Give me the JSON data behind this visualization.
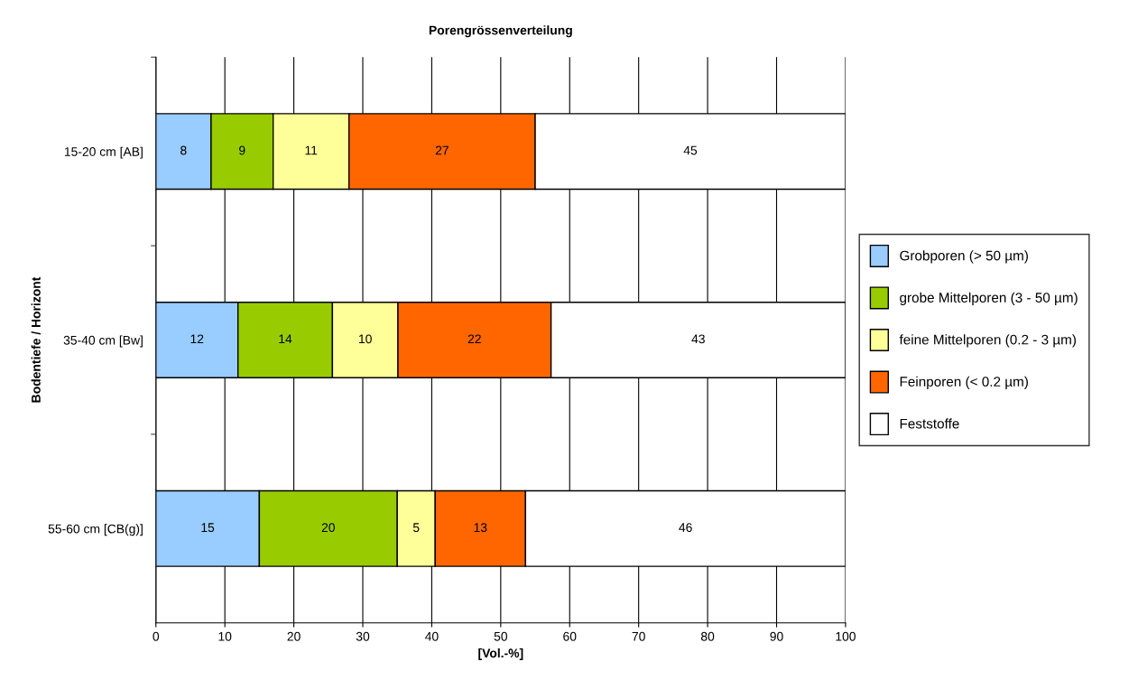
{
  "chart_data": {
    "type": "bar",
    "orientation": "horizontal",
    "stacked": true,
    "title": "Porengrössenverteilung",
    "xlabel": "[Vol.-%]",
    "ylabel": "Bodentiefe / Horizont",
    "categories": [
      "15-20 cm [AB]",
      "35-40 cm [Bw]",
      "55-60 cm [CB(g)]"
    ],
    "series": [
      {
        "name": "Grobporen (> 50 µm)",
        "color": "#99ccff",
        "values": [
          8,
          11.9,
          15
        ],
        "value_labels": [
          "8",
          "12",
          "15"
        ]
      },
      {
        "name": "grobe Mittelporen (3 - 50 µm)",
        "color": "#99cc00",
        "values": [
          9,
          13.7,
          20
        ],
        "value_labels": [
          "9",
          "14",
          "20"
        ]
      },
      {
        "name": "feine Mittelporen (0.2 - 3 µm)",
        "color": "#ffff99",
        "values": [
          11,
          9.5,
          5.5
        ],
        "value_labels": [
          "11",
          "10",
          "5"
        ]
      },
      {
        "name": "Feinporen (< 0.2 µm)",
        "color": "#ff6600",
        "values": [
          27,
          22.2,
          13.1
        ],
        "value_labels": [
          "27",
          "22",
          "13"
        ]
      },
      {
        "name": "Feststoffe",
        "color": "#ffffff",
        "values": [
          45,
          42.7,
          46.4
        ],
        "value_labels": [
          "45",
          "43",
          "46"
        ]
      }
    ],
    "xlim": [
      0,
      100
    ],
    "xticks": [
      0,
      10,
      20,
      30,
      40,
      50,
      60,
      70,
      80,
      90,
      100
    ],
    "grid": "x",
    "legend": "right"
  }
}
